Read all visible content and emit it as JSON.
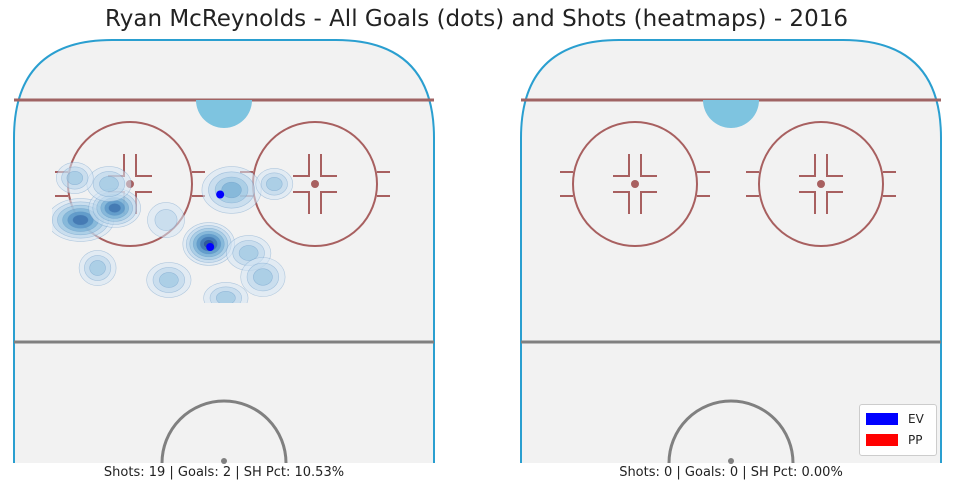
{
  "chart_data": [
    {
      "type": "heatmap",
      "title": "Ryan McReynolds - All Goals (dots) and Shots (heatmaps) - 2016",
      "caption": "Shots: 19 | Goals: 2 | SH Pct: 10.53%",
      "shots": 19,
      "goals": 2,
      "sh_pct": 10.53,
      "goal_points": [
        {
          "x": 0.59,
          "y": 0.255,
          "type": "EV"
        },
        {
          "x": 0.555,
          "y": 0.43,
          "type": "EV"
        }
      ],
      "heat_clusters": [
        {
          "x": 0.1,
          "y": 0.34,
          "rx": 0.09,
          "ry": 0.055,
          "intensity": 5
        },
        {
          "x": 0.22,
          "y": 0.3,
          "rx": 0.07,
          "ry": 0.05,
          "intensity": 5
        },
        {
          "x": 0.55,
          "y": 0.42,
          "rx": 0.07,
          "ry": 0.055,
          "intensity": 6
        },
        {
          "x": 0.63,
          "y": 0.24,
          "rx": 0.08,
          "ry": 0.06,
          "intensity": 3
        },
        {
          "x": 0.78,
          "y": 0.22,
          "rx": 0.05,
          "ry": 0.04,
          "intensity": 2
        },
        {
          "x": 0.2,
          "y": 0.22,
          "rx": 0.06,
          "ry": 0.045,
          "intensity": 2
        },
        {
          "x": 0.08,
          "y": 0.2,
          "rx": 0.05,
          "ry": 0.04,
          "intensity": 2
        },
        {
          "x": 0.16,
          "y": 0.5,
          "rx": 0.05,
          "ry": 0.045,
          "intensity": 2
        },
        {
          "x": 0.41,
          "y": 0.54,
          "rx": 0.06,
          "ry": 0.045,
          "intensity": 2
        },
        {
          "x": 0.69,
          "y": 0.45,
          "rx": 0.06,
          "ry": 0.045,
          "intensity": 2
        },
        {
          "x": 0.74,
          "y": 0.53,
          "rx": 0.06,
          "ry": 0.05,
          "intensity": 2
        },
        {
          "x": 0.61,
          "y": 0.6,
          "rx": 0.06,
          "ry": 0.04,
          "intensity": 2
        },
        {
          "x": 0.4,
          "y": 0.34,
          "rx": 0.05,
          "ry": 0.045,
          "intensity": 1
        }
      ]
    },
    {
      "type": "heatmap",
      "title": "Ryan McReynolds - All Goals (dots) and Shots (heatmaps) - 2016",
      "caption": "Shots: 0 | Goals: 0 | SH Pct: 0.00%",
      "shots": 0,
      "goals": 0,
      "sh_pct": 0.0,
      "goal_points": [],
      "heat_clusters": []
    }
  ],
  "title": "Ryan McReynolds - All Goals (dots) and Shots (heatmaps) - 2016",
  "legend": {
    "placement": "bottom-right",
    "entries": [
      {
        "label": "EV",
        "color": "#0000ff"
      },
      {
        "label": "PP",
        "color": "#ff0000"
      }
    ]
  },
  "colors": {
    "rink_border": "#2a9fd0",
    "rink_fill": "#f2f2f2",
    "goal_line": "#a06464",
    "circles": "#a86060",
    "blue_line": "#808080",
    "crease": "#7ec4e0"
  }
}
